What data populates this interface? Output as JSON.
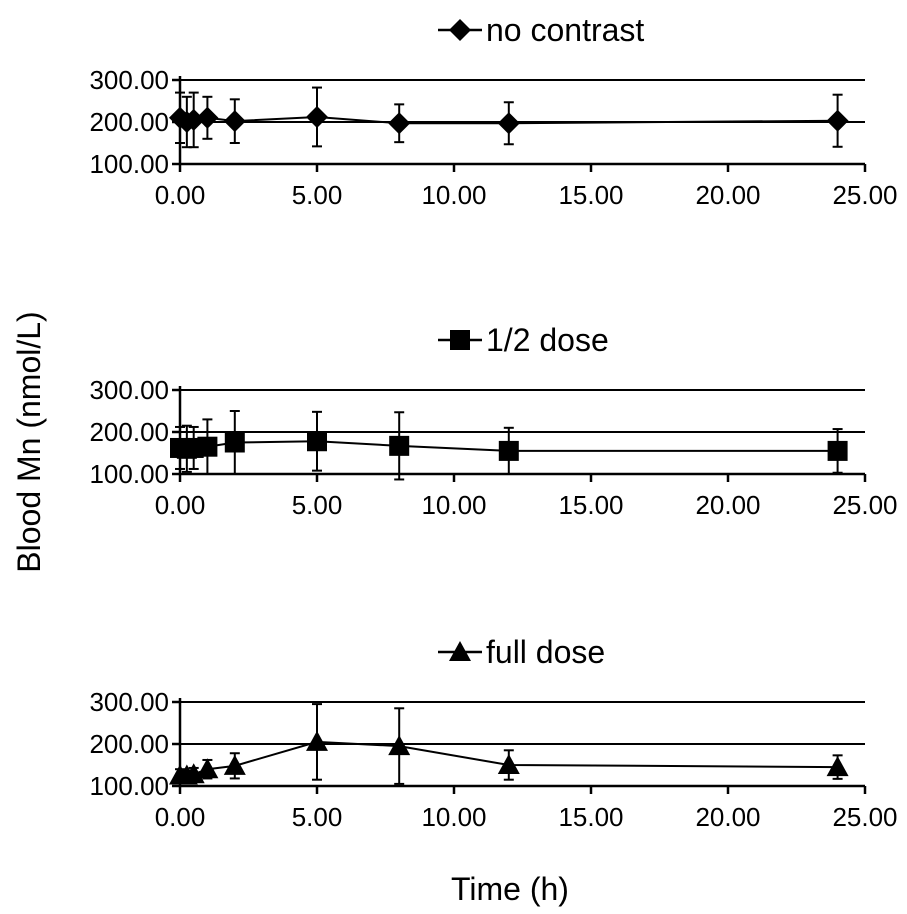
{
  "chart_data": [
    {
      "type": "line",
      "legend": "no contrast",
      "marker": "diamond",
      "x": [
        0,
        0.25,
        0.5,
        1,
        2,
        5,
        8,
        12,
        24
      ],
      "y": [
        210,
        200,
        205,
        210,
        202,
        212,
        197,
        197,
        203
      ],
      "err": [
        60,
        60,
        65,
        50,
        52,
        70,
        45,
        50,
        62
      ],
      "xlim": [
        0,
        25
      ],
      "ylim": [
        100,
        300
      ],
      "xticks": [
        "0.00",
        "5.00",
        "10.00",
        "15.00",
        "20.00",
        "25.00"
      ],
      "yticks": [
        "100.00",
        "200.00",
        "300.00"
      ],
      "gridlines_y": [
        200,
        300
      ]
    },
    {
      "type": "line",
      "legend": "1/2 dose",
      "marker": "square",
      "x": [
        0,
        0.25,
        0.5,
        1,
        2,
        5,
        8,
        12,
        24
      ],
      "y": [
        162,
        160,
        162,
        165,
        175,
        178,
        167,
        155,
        155
      ],
      "err": [
        50,
        55,
        50,
        65,
        75,
        70,
        80,
        55,
        52
      ],
      "xlim": [
        0,
        25
      ],
      "ylim": [
        100,
        300
      ],
      "xticks": [
        "0.00",
        "5.00",
        "10.00",
        "15.00",
        "20.00",
        "25.00"
      ],
      "yticks": [
        "100.00",
        "200.00",
        "300.00"
      ],
      "gridlines_y": [
        200,
        300
      ]
    },
    {
      "type": "line",
      "legend": "full dose",
      "marker": "triangle",
      "x": [
        0,
        0.25,
        0.5,
        1,
        2,
        5,
        8,
        12,
        24
      ],
      "y": [
        125,
        125,
        128,
        140,
        148,
        205,
        195,
        150,
        145
      ],
      "err": [
        15,
        12,
        15,
        22,
        30,
        90,
        90,
        35,
        28
      ],
      "xlim": [
        0,
        25
      ],
      "ylim": [
        100,
        300
      ],
      "xticks": [
        "0.00",
        "5.00",
        "10.00",
        "15.00",
        "20.00",
        "25.00"
      ],
      "yticks": [
        "100.00",
        "200.00",
        "300.00"
      ],
      "gridlines_y": [
        200,
        300
      ]
    }
  ],
  "ylabel": "Blood Mn (nmol/L)",
  "xlabel": "Time (h)"
}
